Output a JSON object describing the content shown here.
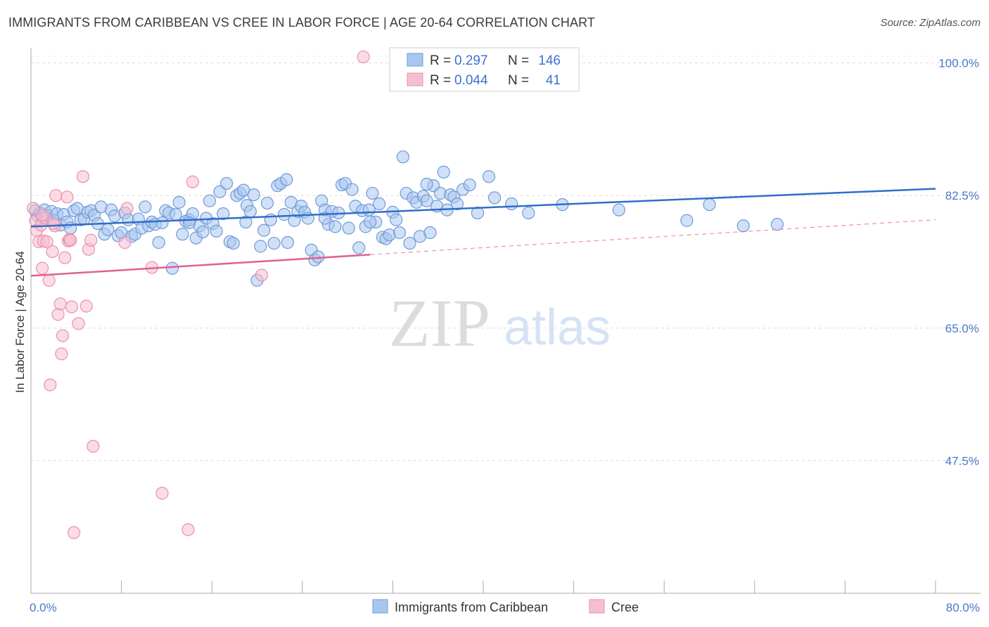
{
  "header": {
    "title": "IMMIGRANTS FROM CARIBBEAN VS CREE IN LABOR FORCE | AGE 20-64 CORRELATION CHART",
    "source": "Source: ZipAtlas.com"
  },
  "watermark": {
    "zip": "ZIP",
    "atlas": "atlas"
  },
  "colors": {
    "blue_fill": "#a9c6ee",
    "blue_stroke": "#6f9ad8",
    "blue_line": "#2f6ec9",
    "pink_fill": "#f6bfd0",
    "pink_stroke": "#eb8faf",
    "pink_line": "#e0628e",
    "tick_text": "#4a78c9",
    "grid": "#dddddd"
  },
  "legend_top": {
    "rows": [
      {
        "r_label": "R =",
        "r_value": "0.297",
        "n_label": "N =",
        "n_value": "146"
      },
      {
        "r_label": "R =",
        "r_value": "0.044",
        "n_label": "N =",
        "n_value": "41"
      }
    ]
  },
  "chart_data": {
    "type": "scatter",
    "title": "IMMIGRANTS FROM CARIBBEAN VS CREE IN LABOR FORCE | AGE 20-64 CORRELATION CHART",
    "xlabel": "",
    "ylabel": "In Labor Force | Age 20-64",
    "xlim": [
      0,
      80
    ],
    "ylim": [
      30,
      102
    ],
    "x_tick_labels": [
      "0.0%",
      "80.0%"
    ],
    "y_ticks": [
      100,
      82.5,
      65,
      47.5
    ],
    "y_tick_labels": [
      "100.0%",
      "82.5%",
      "65.0%",
      "47.5%"
    ],
    "grid": "horizontal-dashed",
    "legend_position": "top-center",
    "series": [
      {
        "name": "Immigrants from Caribbean",
        "r": 0.297,
        "n": 146,
        "trend": {
          "x": [
            0,
            80
          ],
          "y": [
            78.4,
            83.4
          ]
        },
        "points": [
          [
            0.4,
            80.5
          ],
          [
            0.6,
            79.8
          ],
          [
            0.8,
            80.2
          ],
          [
            1.0,
            79.5
          ],
          [
            1.2,
            80.6
          ],
          [
            1.5,
            79.8
          ],
          [
            1.8,
            80.4
          ],
          [
            2.0,
            79.2
          ],
          [
            2.3,
            80.1
          ],
          [
            2.6,
            78.6
          ],
          [
            2.9,
            80.0
          ],
          [
            3.2,
            79.0
          ],
          [
            3.5,
            78.2
          ],
          [
            3.8,
            80.5
          ],
          [
            4.1,
            80.8
          ],
          [
            4.4,
            79.3
          ],
          [
            4.7,
            79.4
          ],
          [
            5.0,
            80.3
          ],
          [
            5.3,
            80.5
          ],
          [
            5.6,
            79.9
          ],
          [
            5.9,
            78.8
          ],
          [
            6.2,
            81.0
          ],
          [
            6.5,
            77.4
          ],
          [
            6.8,
            78.0
          ],
          [
            7.1,
            80.6
          ],
          [
            7.4,
            79.8
          ],
          [
            7.7,
            77.2
          ],
          [
            8.0,
            77.6
          ],
          [
            8.3,
            80.2
          ],
          [
            8.6,
            79.3
          ],
          [
            8.9,
            77.1
          ],
          [
            9.2,
            77.4
          ],
          [
            9.5,
            79.4
          ],
          [
            9.8,
            78.2
          ],
          [
            10.1,
            81.0
          ],
          [
            10.4,
            78.5
          ],
          [
            10.7,
            79.0
          ],
          [
            11.0,
            78.7
          ],
          [
            11.3,
            76.3
          ],
          [
            11.6,
            78.9
          ],
          [
            11.9,
            80.5
          ],
          [
            12.2,
            80.2
          ],
          [
            12.5,
            72.9
          ],
          [
            12.8,
            80.0
          ],
          [
            13.1,
            81.6
          ],
          [
            13.4,
            77.4
          ],
          [
            13.7,
            79.1
          ],
          [
            14.0,
            79.3
          ],
          [
            14.3,
            80.1
          ],
          [
            14.6,
            76.9
          ],
          [
            14.9,
            78.5
          ],
          [
            15.2,
            77.7
          ],
          [
            15.5,
            79.5
          ],
          [
            15.8,
            81.8
          ],
          [
            16.1,
            78.8
          ],
          [
            16.4,
            77.8
          ],
          [
            16.7,
            83.0
          ],
          [
            17.0,
            80.1
          ],
          [
            17.3,
            84.1
          ],
          [
            17.6,
            76.4
          ],
          [
            17.9,
            76.2
          ],
          [
            18.2,
            82.5
          ],
          [
            18.5,
            82.8
          ],
          [
            18.8,
            83.2
          ],
          [
            19.1,
            81.2
          ],
          [
            19.4,
            80.4
          ],
          [
            19.7,
            82.6
          ],
          [
            20.0,
            71.3
          ],
          [
            20.3,
            75.8
          ],
          [
            20.6,
            77.9
          ],
          [
            20.9,
            81.5
          ],
          [
            21.2,
            79.3
          ],
          [
            21.5,
            76.2
          ],
          [
            21.8,
            83.8
          ],
          [
            22.1,
            84.1
          ],
          [
            22.4,
            80.0
          ],
          [
            22.7,
            76.3
          ],
          [
            23.0,
            81.6
          ],
          [
            23.3,
            79.2
          ],
          [
            23.6,
            80.4
          ],
          [
            23.9,
            81.1
          ],
          [
            24.2,
            80.3
          ],
          [
            24.5,
            79.5
          ],
          [
            24.8,
            75.3
          ],
          [
            25.1,
            74.0
          ],
          [
            25.4,
            74.4
          ],
          [
            25.7,
            81.8
          ],
          [
            26.0,
            80.6
          ],
          [
            26.3,
            78.7
          ],
          [
            26.6,
            80.4
          ],
          [
            26.9,
            78.4
          ],
          [
            27.2,
            80.2
          ],
          [
            27.5,
            83.9
          ],
          [
            27.8,
            84.1
          ],
          [
            28.1,
            78.2
          ],
          [
            28.4,
            83.3
          ],
          [
            28.7,
            81.1
          ],
          [
            29.0,
            75.6
          ],
          [
            29.3,
            80.5
          ],
          [
            29.6,
            78.4
          ],
          [
            29.9,
            80.6
          ],
          [
            30.2,
            82.8
          ],
          [
            30.5,
            79.0
          ],
          [
            30.8,
            81.4
          ],
          [
            31.1,
            77.0
          ],
          [
            31.4,
            76.8
          ],
          [
            31.7,
            77.3
          ],
          [
            32.0,
            80.3
          ],
          [
            32.3,
            79.3
          ],
          [
            32.6,
            77.6
          ],
          [
            32.9,
            87.6
          ],
          [
            33.2,
            82.8
          ],
          [
            33.5,
            76.2
          ],
          [
            33.8,
            82.2
          ],
          [
            34.1,
            81.6
          ],
          [
            34.4,
            77.1
          ],
          [
            34.7,
            82.4
          ],
          [
            35.0,
            81.8
          ],
          [
            35.3,
            77.6
          ],
          [
            35.6,
            83.8
          ],
          [
            35.9,
            81.1
          ],
          [
            36.2,
            82.8
          ],
          [
            36.5,
            85.6
          ],
          [
            36.8,
            80.6
          ],
          [
            37.1,
            82.6
          ],
          [
            37.4,
            82.3
          ],
          [
            37.7,
            81.4
          ],
          [
            38.2,
            83.3
          ],
          [
            38.8,
            83.9
          ],
          [
            39.5,
            80.2
          ],
          [
            40.5,
            85.0
          ],
          [
            41.0,
            82.2
          ],
          [
            42.5,
            81.4
          ],
          [
            44.0,
            80.2
          ],
          [
            47.0,
            81.3
          ],
          [
            52.0,
            80.6
          ],
          [
            58.0,
            79.2
          ],
          [
            60.0,
            81.3
          ],
          [
            63.0,
            78.5
          ],
          [
            66.0,
            78.7
          ],
          [
            35.0,
            84.0
          ],
          [
            22.6,
            84.6
          ],
          [
            19.0,
            79.0
          ],
          [
            14.0,
            78.9
          ],
          [
            26.0,
            79.5
          ],
          [
            30.0,
            79.0
          ]
        ]
      },
      {
        "name": "Cree",
        "r": 0.044,
        "n": 41,
        "trend": {
          "x": [
            0,
            30
          ],
          "y": [
            71.9,
            74.7
          ]
        },
        "trend_dashed": {
          "x": [
            30,
            80
          ],
          "y": [
            74.7,
            79.3
          ]
        },
        "points": [
          [
            0.2,
            80.8
          ],
          [
            0.4,
            79.2
          ],
          [
            0.5,
            77.9
          ],
          [
            0.7,
            76.4
          ],
          [
            0.9,
            78.6
          ],
          [
            1.0,
            72.9
          ],
          [
            1.1,
            76.5
          ],
          [
            1.3,
            79.5
          ],
          [
            1.4,
            76.4
          ],
          [
            1.6,
            71.3
          ],
          [
            1.7,
            57.5
          ],
          [
            1.9,
            75.1
          ],
          [
            2.1,
            78.5
          ],
          [
            2.2,
            82.5
          ],
          [
            2.4,
            66.8
          ],
          [
            2.6,
            68.2
          ],
          [
            2.7,
            61.6
          ],
          [
            2.8,
            64.0
          ],
          [
            3.0,
            74.3
          ],
          [
            3.2,
            82.3
          ],
          [
            3.3,
            76.5
          ],
          [
            3.4,
            76.7
          ],
          [
            3.5,
            76.6
          ],
          [
            3.6,
            67.8
          ],
          [
            3.8,
            38.0
          ],
          [
            4.2,
            65.6
          ],
          [
            4.6,
            85.0
          ],
          [
            4.9,
            67.9
          ],
          [
            5.1,
            75.4
          ],
          [
            5.5,
            49.4
          ],
          [
            8.3,
            76.3
          ],
          [
            8.5,
            80.8
          ],
          [
            10.7,
            73.0
          ],
          [
            11.6,
            43.2
          ],
          [
            13.9,
            38.4
          ],
          [
            14.3,
            84.3
          ],
          [
            20.4,
            72.0
          ],
          [
            29.4,
            100.8
          ],
          [
            1.0,
            79.9
          ],
          [
            2.0,
            78.8
          ],
          [
            5.3,
            76.6
          ]
        ]
      }
    ]
  },
  "bottom_legend": [
    {
      "label": "Immigrants from Caribbean"
    },
    {
      "label": "Cree"
    }
  ]
}
